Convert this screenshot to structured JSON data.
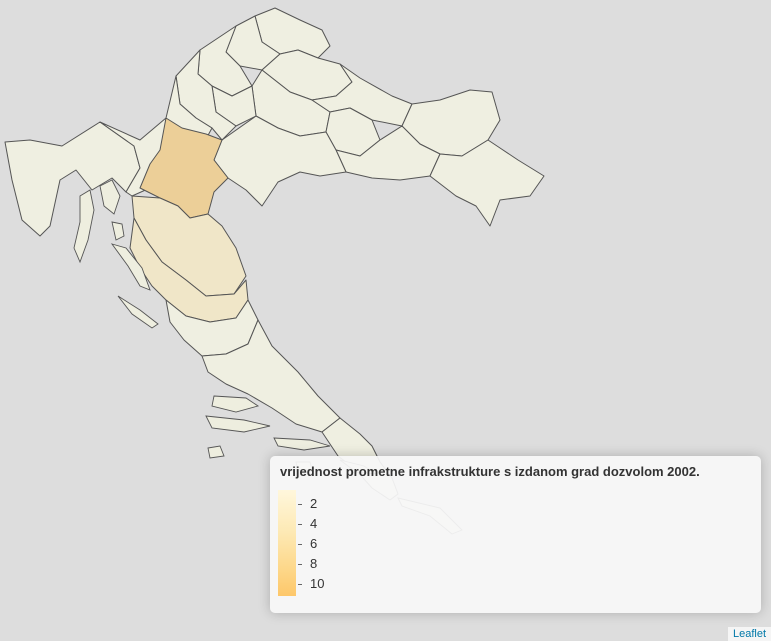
{
  "legend": {
    "title": "vrijednost prometne infrakstrukture s izdanom grad dozvolom 2002.",
    "ticks": [
      "2",
      "4",
      "6",
      "8",
      "10"
    ]
  },
  "attribution": "Leaflet",
  "colors": {
    "background": "#dddddd",
    "base_fill": "#efefe1",
    "low_fill": "#f0e6c8",
    "high_fill": "#eccf98",
    "border": "#555555",
    "link": "#0078A8"
  }
}
